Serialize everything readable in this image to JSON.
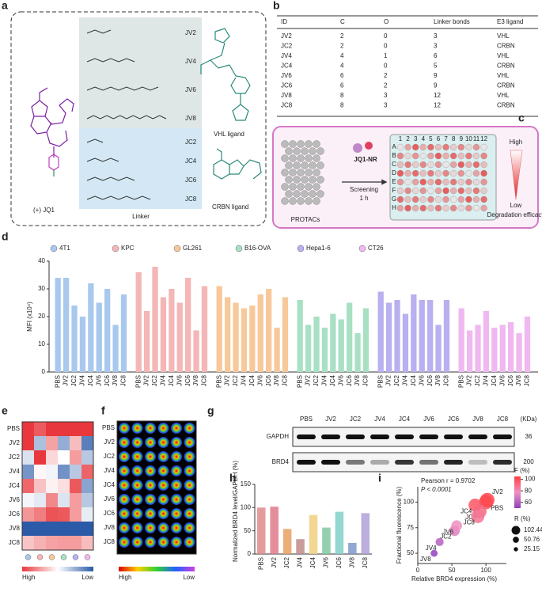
{
  "panel_a": {
    "label": "a",
    "jq1": "(+) JQ1",
    "linkers": [
      "JV2",
      "JV4",
      "JV6",
      "JV8",
      "JC2",
      "JC4",
      "JC6",
      "JC8"
    ],
    "vhl": "VHL ligand",
    "crbn": "CRBN ligand",
    "linker": "Linker"
  },
  "panel_b": {
    "label": "b",
    "table": {
      "header": [
        "ID",
        "C",
        "O",
        "Linker bonds",
        "E3 ligand"
      ],
      "rows": [
        [
          "JV2",
          2,
          0,
          3,
          "VHL"
        ],
        [
          "JC2",
          2,
          0,
          3,
          "CRBN"
        ],
        [
          "JV4",
          4,
          1,
          6,
          "VHL"
        ],
        [
          "JC4",
          4,
          0,
          5,
          "CRBN"
        ],
        [
          "JV6",
          6,
          2,
          9,
          "VHL"
        ],
        [
          "JC6",
          6,
          2,
          9,
          "CRBN"
        ],
        [
          "JV8",
          8,
          3,
          12,
          "VHL"
        ],
        [
          "JC8",
          8,
          3,
          12,
          "CRBN"
        ]
      ]
    }
  },
  "panel_c": {
    "label": "c",
    "protacs": "PROTACs",
    "probe": "JQ1-NR",
    "screening": "Screening",
    "time": "1 h",
    "high": "High",
    "low": "Low",
    "efficacy": "Degradation efficacy",
    "columns": [
      1,
      2,
      3,
      4,
      5,
      6,
      7,
      8,
      9,
      10,
      11,
      12
    ],
    "rows": [
      "A",
      "B",
      "C",
      "D",
      "E",
      "F",
      "G",
      "H"
    ]
  },
  "chart_data": [
    {
      "label": "d",
      "type": "grouped_bar",
      "ylabel": "MFI (x10⁴)",
      "ylim": [
        0,
        40
      ],
      "yticks": [
        0,
        10,
        20,
        30,
        40
      ],
      "categories": [
        "PBS",
        "JV2",
        "JC2",
        "JV4",
        "JC4",
        "JV6",
        "JC6",
        "JV8",
        "JC8"
      ],
      "series": [
        {
          "name": "4T1",
          "color": "#a9c8ee",
          "values": [
            34,
            34,
            24,
            20,
            32,
            25,
            30,
            17,
            28
          ]
        },
        {
          "name": "KPC",
          "color": "#f4b6b6",
          "values": [
            36,
            22,
            38,
            27,
            30,
            25,
            34,
            15,
            31
          ]
        },
        {
          "name": "GL261",
          "color": "#f7c99a",
          "values": [
            31,
            27,
            25,
            23,
            24,
            28,
            30,
            16,
            27
          ]
        },
        {
          "name": "B16-OVA",
          "color": "#a8e0c4",
          "values": [
            26,
            17,
            20,
            16,
            21,
            19,
            25,
            14,
            23
          ]
        },
        {
          "name": "Hepa1-6",
          "color": "#b8b0f0",
          "values": [
            29,
            25,
            26,
            21,
            28,
            26,
            26,
            17,
            26
          ]
        },
        {
          "name": "CT26",
          "color": "#f0b8f0",
          "values": [
            23,
            15,
            17,
            22,
            16,
            17,
            18,
            14,
            20
          ]
        }
      ]
    },
    {
      "label": "h",
      "type": "bar",
      "ylabel": "Normalized BRD4 level/GAPDH (%)",
      "ylim": [
        0,
        150
      ],
      "yticks": [
        0,
        50,
        100,
        150
      ],
      "categories": [
        "PBS",
        "JV2",
        "JC2",
        "JV4",
        "JC4",
        "JV6",
        "JC6",
        "JV8",
        "JC8"
      ],
      "values": [
        100,
        102,
        54,
        32,
        84,
        57,
        91,
        24,
        88
      ],
      "colors": [
        "#e08a8a",
        "#e07a8a",
        "#e8a060",
        "#c08a8a",
        "#f0d080",
        "#80c8a0",
        "#80d0c8",
        "#8098d0",
        "#b0a0d8"
      ]
    },
    {
      "label": "i",
      "type": "bubble",
      "title": "Pearson r = 0.9702",
      "subtitle": "P < 0.0001",
      "xlabel": "Relative BRD4 expression (%)",
      "ylabel": "Fractional fluorescence (%)",
      "xlim": [
        0,
        130
      ],
      "ylim": [
        40,
        115
      ],
      "xticks": [
        0,
        50,
        100
      ],
      "yticks": [
        50,
        75,
        100
      ],
      "labels": [
        "PBS",
        "JV2",
        "JC2",
        "JV4",
        "JC4",
        "JV6",
        "JC6",
        "JV8",
        "JC8"
      ],
      "x": [
        100,
        102,
        54,
        32,
        84,
        57,
        91,
        24,
        88
      ],
      "y": [
        100,
        102,
        72,
        61,
        97,
        77,
        91,
        50,
        86
      ],
      "color_title": "F (%)",
      "clim": [
        50,
        105
      ],
      "cticks": [
        60,
        80,
        100
      ],
      "size_title": "R (%)",
      "size_legend": [
        102.44,
        50.76,
        25.15
      ]
    }
  ],
  "panel_e": {
    "label": "e",
    "rows": [
      "PBS",
      "JV2",
      "JC2",
      "JV4",
      "JC4",
      "JV6",
      "JC6",
      "JV8",
      "JC8"
    ],
    "high": "High",
    "low": "Low"
  },
  "panel_f": {
    "label": "f",
    "rows": [
      "PBS",
      "JV2",
      "JC2",
      "JV4",
      "JC4",
      "JV6",
      "JC6",
      "JV8",
      "JC8"
    ],
    "high": "High",
    "low": "Low"
  },
  "panel_g": {
    "label": "g",
    "lanes": [
      "PBS",
      "JV2",
      "JC2",
      "JV4",
      "JC4",
      "JV6",
      "JC6",
      "JV8",
      "JC8"
    ],
    "proteins": [
      "GAPDH",
      "BRD4"
    ],
    "unit": "(KDa)",
    "sizes": [
      36,
      200
    ]
  }
}
